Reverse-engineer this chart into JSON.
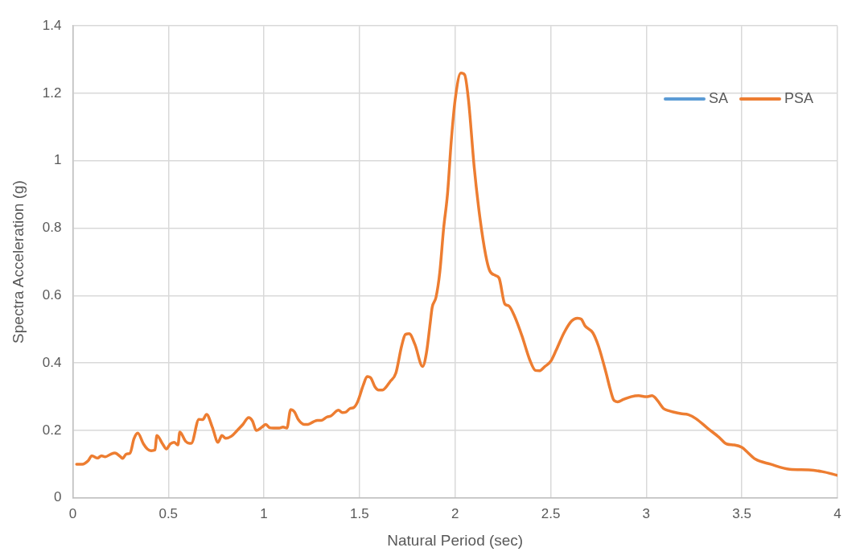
{
  "chart_data": {
    "type": "line",
    "xlabel": "Natural Period (sec)",
    "ylabel": "Spectra Acceleration (g)",
    "xlim": [
      0,
      4
    ],
    "xticks": [
      0,
      0.5,
      1,
      1.5,
      2,
      2.5,
      3,
      3.5,
      4
    ],
    "ylim": [
      0,
      1.4
    ],
    "yticks": [
      0,
      0.2,
      0.4,
      0.6,
      0.8,
      1,
      1.2,
      1.4
    ],
    "grid": true,
    "legend": "top right",
    "marker": "none",
    "line_style": "solid",
    "x": [
      0.02,
      0.05,
      0.08,
      0.1,
      0.13,
      0.15,
      0.17,
      0.2,
      0.22,
      0.25,
      0.26,
      0.28,
      0.3,
      0.32,
      0.34,
      0.37,
      0.39,
      0.41,
      0.43,
      0.44,
      0.47,
      0.49,
      0.51,
      0.53,
      0.55,
      0.56,
      0.59,
      0.61,
      0.62,
      0.66,
      0.68,
      0.7,
      0.73,
      0.76,
      0.78,
      0.8,
      0.83,
      0.86,
      0.89,
      0.92,
      0.94,
      0.96,
      0.99,
      1.01,
      1.03,
      1.05,
      1.08,
      1.1,
      1.12,
      1.14,
      1.16,
      1.18,
      1.21,
      1.23,
      1.26,
      1.28,
      1.3,
      1.33,
      1.35,
      1.39,
      1.41,
      1.43,
      1.45,
      1.47,
      1.49,
      1.52,
      1.54,
      1.56,
      1.58,
      1.6,
      1.62,
      1.66,
      1.69,
      1.72,
      1.74,
      1.76,
      1.79,
      1.83,
      1.85,
      1.87,
      1.88,
      1.9,
      1.92,
      1.94,
      1.96,
      1.98,
      2.0,
      2.03,
      2.05,
      2.07,
      2.1,
      2.13,
      2.16,
      2.18,
      2.21,
      2.23,
      2.26,
      2.28,
      2.31,
      2.35,
      2.39,
      2.42,
      2.44,
      2.47,
      2.5,
      2.53,
      2.57,
      2.61,
      2.64,
      2.66,
      2.68,
      2.72,
      2.75,
      2.79,
      2.81,
      2.83,
      2.85,
      2.88,
      2.92,
      2.96,
      3.0,
      3.03,
      3.05,
      3.07,
      3.09,
      3.12,
      3.14,
      3.18,
      3.22,
      3.26,
      3.32,
      3.38,
      3.42,
      3.46,
      3.5,
      3.53,
      3.57,
      3.65,
      3.75,
      3.85,
      3.92,
      4.0
    ],
    "series": [
      {
        "name": "SA",
        "color": "#5b9bd5",
        "values": [
          null,
          null,
          null,
          null,
          null,
          null,
          null,
          null,
          null,
          null,
          null,
          null,
          null,
          null,
          null,
          null,
          null,
          null,
          null,
          null,
          null,
          null,
          null,
          null,
          null,
          null,
          null,
          null,
          null,
          null,
          null,
          null,
          null,
          null,
          null,
          null,
          null,
          null,
          null,
          null,
          null,
          null,
          null,
          null,
          null,
          null,
          null,
          null,
          null,
          null,
          null,
          null,
          null,
          null,
          null,
          null,
          null,
          null,
          null,
          null,
          null,
          null,
          null,
          null,
          null,
          null,
          null,
          null,
          null,
          null,
          null,
          null,
          null,
          null,
          null,
          null,
          null,
          null,
          null,
          null,
          null,
          null,
          null,
          null,
          null,
          null,
          null,
          null,
          null,
          null,
          null,
          null,
          null,
          null,
          null,
          null,
          null,
          null,
          null,
          null,
          null,
          null,
          null,
          null,
          null,
          null,
          null,
          null,
          null,
          null,
          null,
          null,
          null,
          null,
          null,
          null,
          null,
          null,
          null,
          null,
          null,
          null,
          null,
          null,
          null,
          null,
          null,
          null,
          null,
          null,
          null,
          null,
          null,
          null,
          null,
          null,
          null,
          null,
          null,
          null,
          null,
          null
        ]
      },
      {
        "name": "PSA",
        "color": "#ed7d31",
        "values": [
          0.1,
          0.1,
          0.11,
          0.125,
          0.118,
          0.125,
          0.122,
          0.13,
          0.133,
          0.122,
          0.117,
          0.13,
          0.133,
          0.175,
          0.192,
          0.16,
          0.145,
          0.14,
          0.142,
          0.185,
          0.16,
          0.145,
          0.16,
          0.165,
          0.157,
          0.195,
          0.168,
          0.162,
          0.162,
          0.233,
          0.232,
          0.248,
          0.21,
          0.165,
          0.185,
          0.177,
          0.183,
          0.2,
          0.218,
          0.238,
          0.228,
          0.2,
          0.21,
          0.218,
          0.208,
          0.207,
          0.207,
          0.21,
          0.207,
          0.262,
          0.255,
          0.232,
          0.218,
          0.218,
          0.226,
          0.23,
          0.23,
          0.24,
          0.243,
          0.26,
          0.253,
          0.255,
          0.265,
          0.268,
          0.285,
          0.335,
          0.36,
          0.355,
          0.33,
          0.32,
          0.32,
          0.345,
          0.37,
          0.45,
          0.485,
          0.487,
          0.455,
          0.39,
          0.43,
          0.52,
          0.565,
          0.595,
          0.67,
          0.8,
          0.9,
          1.06,
          1.18,
          1.26,
          1.255,
          1.18,
          0.98,
          0.83,
          0.72,
          0.675,
          0.66,
          0.652,
          0.575,
          0.57,
          0.54,
          0.48,
          0.41,
          0.378,
          0.377,
          0.39,
          0.405,
          0.44,
          0.49,
          0.525,
          0.533,
          0.53,
          0.51,
          0.49,
          0.45,
          0.37,
          0.325,
          0.29,
          0.285,
          0.292,
          0.3,
          0.303,
          0.3,
          0.303,
          0.295,
          0.28,
          0.265,
          0.258,
          0.255,
          0.25,
          0.247,
          0.235,
          0.207,
          0.18,
          0.16,
          0.157,
          0.15,
          0.135,
          0.115,
          0.1,
          0.085,
          0.083,
          0.078,
          0.067
        ]
      }
    ]
  }
}
